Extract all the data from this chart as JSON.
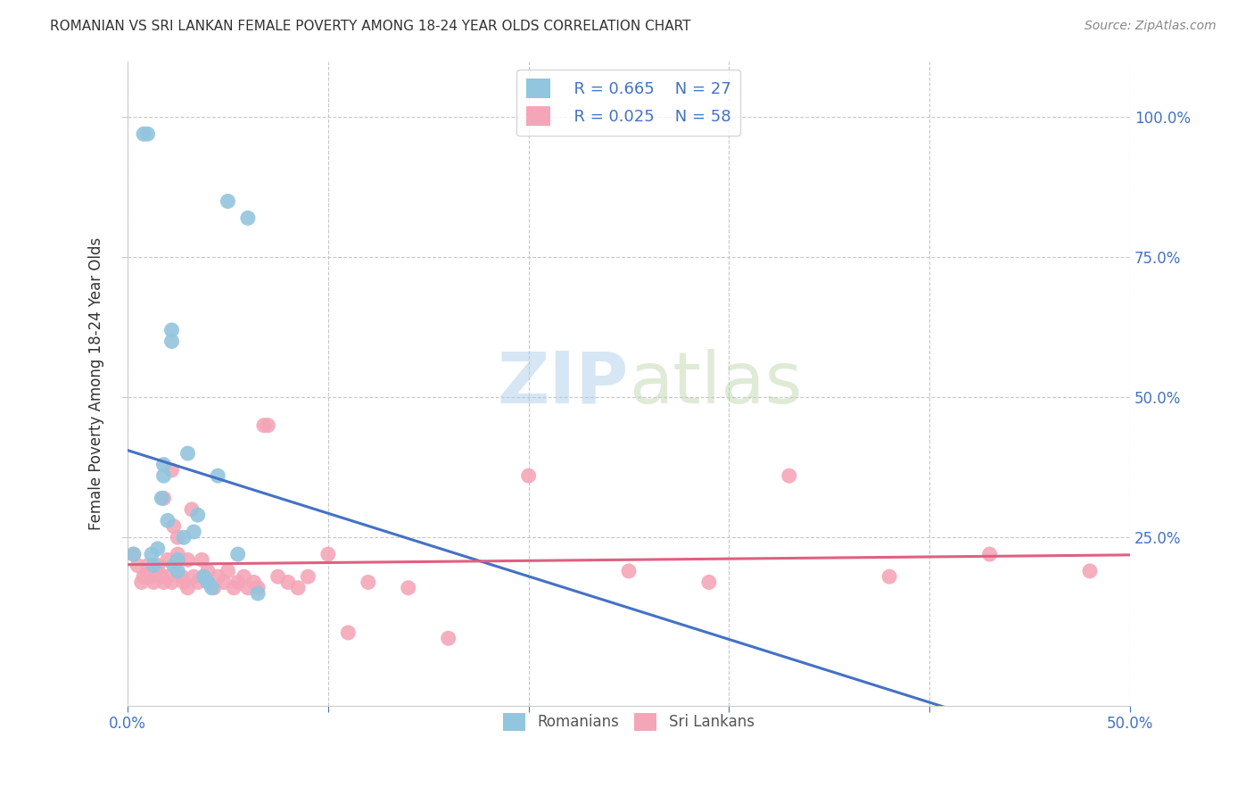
{
  "title": "ROMANIAN VS SRI LANKAN FEMALE POVERTY AMONG 18-24 YEAR OLDS CORRELATION CHART",
  "source": "Source: ZipAtlas.com",
  "ylabel": "Female Poverty Among 18-24 Year Olds",
  "xlim": [
    0.0,
    0.5
  ],
  "ylim": [
    -0.05,
    1.1
  ],
  "xticks": [
    0.0,
    0.1,
    0.2,
    0.3,
    0.4,
    0.5
  ],
  "yticks": [
    0.25,
    0.5,
    0.75,
    1.0
  ],
  "xticklabels": [
    "0.0%",
    "",
    "",
    "",
    "",
    "50.0%"
  ],
  "yticklabels": [
    "25.0%",
    "50.0%",
    "75.0%",
    "100.0%"
  ],
  "romanian_color": "#92C5DE",
  "sri_lankan_color": "#F4A6B8",
  "trendline_romanian_color": "#4472C4",
  "trendline_sri_lankan_color": "#E06080",
  "legend_R_romanian": "R = 0.665",
  "legend_N_romanian": "N = 27",
  "legend_R_sri_lankan": "R = 0.025",
  "legend_N_sri_lankan": "N = 58",
  "watermark_zip": "ZIP",
  "watermark_atlas": "atlas",
  "background_color": "#FFFFFF",
  "romanian_x": [
    0.003,
    0.008,
    0.01,
    0.012,
    0.013,
    0.015,
    0.017,
    0.018,
    0.018,
    0.02,
    0.022,
    0.022,
    0.023,
    0.025,
    0.025,
    0.028,
    0.03,
    0.033,
    0.035,
    0.038,
    0.04,
    0.042,
    0.045,
    0.05,
    0.055,
    0.06,
    0.065
  ],
  "romanian_y": [
    0.22,
    0.97,
    0.97,
    0.22,
    0.2,
    0.23,
    0.32,
    0.36,
    0.38,
    0.28,
    0.6,
    0.62,
    0.2,
    0.19,
    0.21,
    0.25,
    0.4,
    0.26,
    0.29,
    0.18,
    0.17,
    0.16,
    0.36,
    0.85,
    0.22,
    0.82,
    0.15
  ],
  "sri_lankan_x": [
    0.003,
    0.005,
    0.007,
    0.008,
    0.01,
    0.01,
    0.012,
    0.013,
    0.015,
    0.015,
    0.017,
    0.018,
    0.018,
    0.02,
    0.02,
    0.022,
    0.022,
    0.023,
    0.025,
    0.025,
    0.027,
    0.028,
    0.03,
    0.03,
    0.032,
    0.033,
    0.035,
    0.037,
    0.038,
    0.04,
    0.043,
    0.045,
    0.048,
    0.05,
    0.053,
    0.055,
    0.058,
    0.06,
    0.063,
    0.065,
    0.068,
    0.07,
    0.075,
    0.08,
    0.085,
    0.09,
    0.1,
    0.11,
    0.12,
    0.14,
    0.16,
    0.2,
    0.25,
    0.29,
    0.33,
    0.38,
    0.43,
    0.48
  ],
  "sri_lankan_y": [
    0.22,
    0.2,
    0.17,
    0.18,
    0.19,
    0.2,
    0.18,
    0.17,
    0.2,
    0.19,
    0.18,
    0.17,
    0.32,
    0.21,
    0.18,
    0.17,
    0.37,
    0.27,
    0.25,
    0.22,
    0.18,
    0.17,
    0.16,
    0.21,
    0.3,
    0.18,
    0.17,
    0.21,
    0.18,
    0.19,
    0.16,
    0.18,
    0.17,
    0.19,
    0.16,
    0.17,
    0.18,
    0.16,
    0.17,
    0.16,
    0.45,
    0.45,
    0.18,
    0.17,
    0.16,
    0.18,
    0.22,
    0.08,
    0.17,
    0.16,
    0.07,
    0.36,
    0.19,
    0.17,
    0.36,
    0.18,
    0.22,
    0.19
  ],
  "grid_color": "#BBBBBB",
  "title_color": "#333333",
  "tick_color": "#4472C4"
}
